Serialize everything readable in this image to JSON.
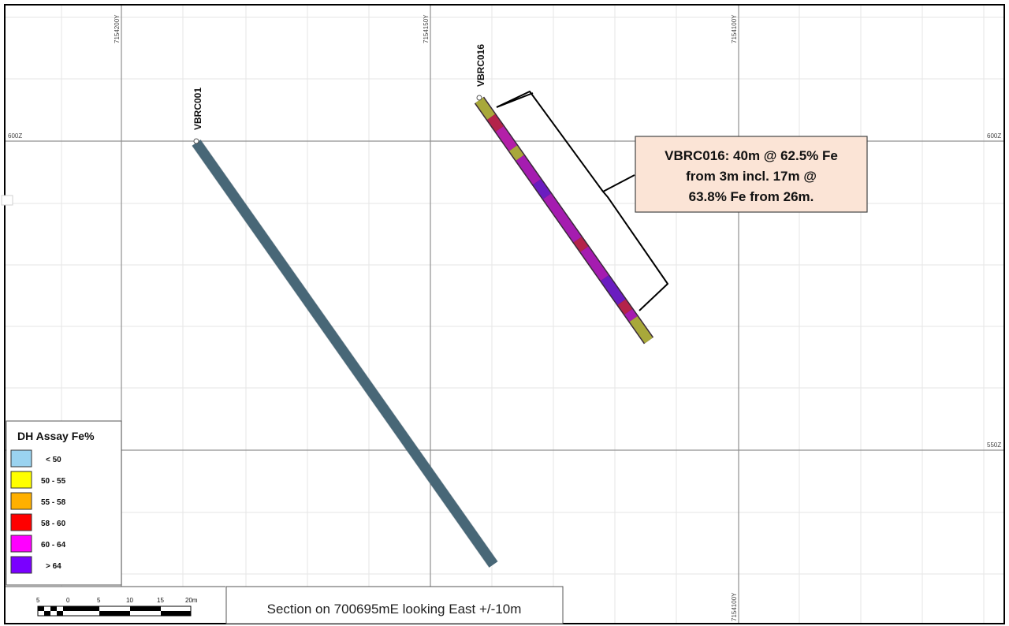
{
  "grid": {
    "northing_labels": [
      "7154200Y",
      "7154150Y",
      "7154100Y"
    ],
    "bottom_northing_label": "7154100Y",
    "elevation_labels": {
      "left_600": "600Z",
      "right_600": "600Z",
      "right_550": "550Z"
    }
  },
  "drillholes": [
    {
      "id": "VBRC001",
      "color": "#577a8c",
      "intervals": []
    },
    {
      "id": "VBRC016",
      "intervals": [
        {
          "t0": 0.0,
          "t1": 0.07,
          "color": "#a8a83a"
        },
        {
          "t0": 0.07,
          "t1": 0.12,
          "color": "#b4234a"
        },
        {
          "t0": 0.12,
          "t1": 0.2,
          "color": "#b31fa8"
        },
        {
          "t0": 0.2,
          "t1": 0.24,
          "color": "#a8a83a"
        },
        {
          "t0": 0.24,
          "t1": 0.34,
          "color": "#a51cb0"
        },
        {
          "t0": 0.34,
          "t1": 0.4,
          "color": "#6a1cc0"
        },
        {
          "t0": 0.4,
          "t1": 0.58,
          "color": "#a51cb0"
        },
        {
          "t0": 0.58,
          "t1": 0.62,
          "color": "#b4234a"
        },
        {
          "t0": 0.62,
          "t1": 0.74,
          "color": "#a51cb0"
        },
        {
          "t0": 0.74,
          "t1": 0.84,
          "color": "#6a1cc0"
        },
        {
          "t0": 0.84,
          "t1": 0.88,
          "color": "#b4234a"
        },
        {
          "t0": 0.88,
          "t1": 0.91,
          "color": "#a51cb0"
        },
        {
          "t0": 0.91,
          "t1": 1.0,
          "color": "#a8a83a"
        }
      ]
    }
  ],
  "callout": {
    "lines": [
      "VBRC016: 40m @ 62.5% Fe",
      "from 3m incl. 17m @",
      "63.8% Fe from 26m."
    ],
    "background": "#fbe4d6"
  },
  "legend": {
    "title": "DH Assay Fe%",
    "items": [
      {
        "label": "< 50",
        "color": "#9ad3f0"
      },
      {
        "label": "50 - 55",
        "color": "#ffff00"
      },
      {
        "label": "55 - 58",
        "color": "#ffb000"
      },
      {
        "label": "58 - 60",
        "color": "#ff0000"
      },
      {
        "label": "60 - 64",
        "color": "#ff00ff"
      },
      {
        "label": "> 64",
        "color": "#7a00ff"
      }
    ]
  },
  "scale_bar": {
    "ticks": [
      "5",
      "0",
      "5",
      "10",
      "15",
      "20m"
    ]
  },
  "section_title": "Section on 700695mE looking East +/-10m"
}
